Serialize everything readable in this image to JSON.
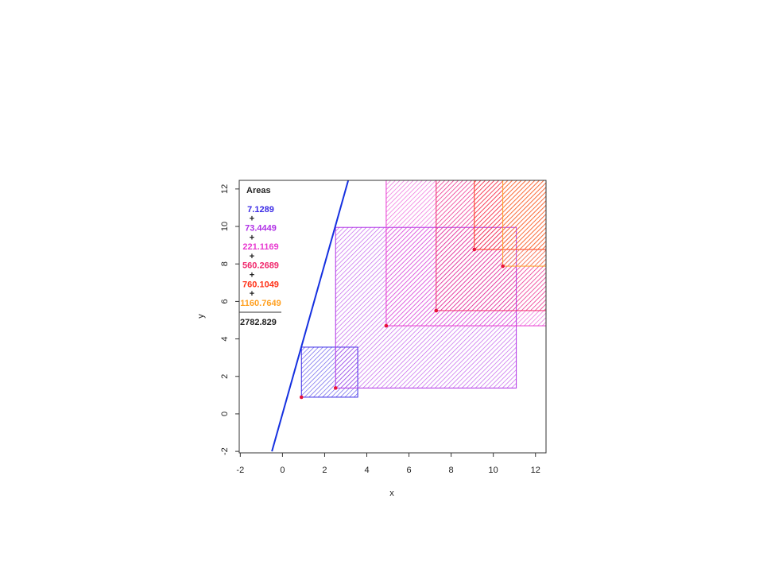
{
  "chart_data": {
    "type": "squares",
    "legend_title": "Areas",
    "separator": "+",
    "total": 2782.829,
    "xlabel": "x",
    "ylabel": "y",
    "xlim": [
      -2.05,
      12.5
    ],
    "ylim": [
      -2.08,
      12.46
    ],
    "xticks": [
      -2,
      0,
      2,
      4,
      6,
      8,
      10,
      12
    ],
    "yticks": [
      -2,
      0,
      2,
      4,
      6,
      8,
      10,
      12
    ],
    "point_color": "#e8103a",
    "line": {
      "color": "#1530e0",
      "x": [
        -0.5,
        3.12
      ],
      "y": [
        -2,
        12.46
      ]
    },
    "squares": [
      {
        "x": 0.9,
        "y": 0.89,
        "area": 7.1289,
        "color": "#3a2ae6"
      },
      {
        "x": 2.52,
        "y": 1.38,
        "area": 73.4449,
        "color": "#b030e6"
      },
      {
        "x": 4.92,
        "y": 4.7,
        "area": 221.1169,
        "color": "#e838d0"
      },
      {
        "x": 7.29,
        "y": 5.51,
        "area": 560.2689,
        "color": "#f0286c"
      },
      {
        "x": 9.1,
        "y": 8.77,
        "area": 760.1049,
        "color": "#ff3218"
      },
      {
        "x": 10.45,
        "y": 7.88,
        "area": 1160.7649,
        "color": "#ffa020"
      }
    ]
  }
}
